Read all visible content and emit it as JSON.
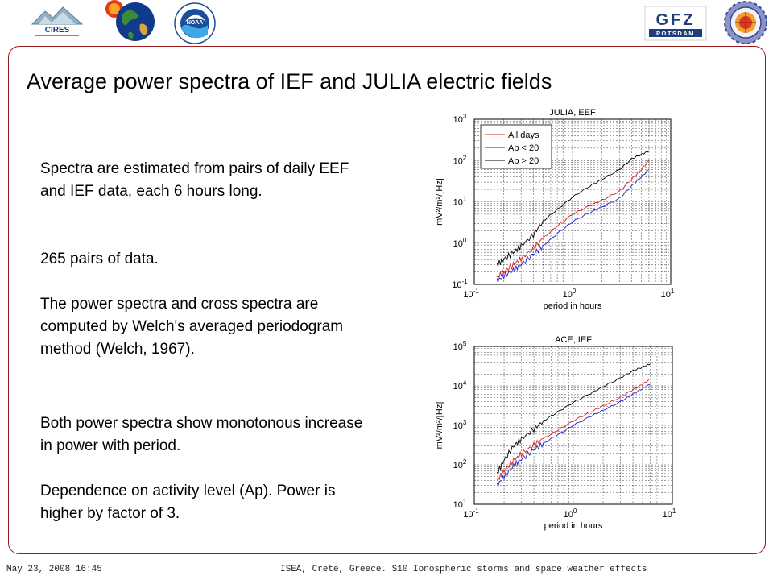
{
  "logos": {
    "cires_text": "CIRES",
    "noaa_text": "NOAA",
    "gfz_text": "GFZ",
    "potsdam_text": "POTSDAM"
  },
  "slide": {
    "title": "Average power spectra of IEF and JULIA electric fields",
    "paragraphs": [
      "Spectra are estimated from pairs of daily EEF and IEF data, each 6 hours long.",
      "265 pairs of data.",
      "The power spectra and cross spectra are computed by Welch's averaged periodogram method (Welch, 1967).",
      "Both power spectra show monotonous increase in power with period.",
      "Dependence on activity level (Ap). Power is higher by factor of 3."
    ]
  },
  "footer": {
    "left": "May 23, 2008 16:45",
    "right": "ISEA, Crete, Greece.  S10 Ionospheric storms and space weather effects"
  },
  "colors": {
    "frame": "#9b1c1c",
    "all_days": "#d62020",
    "ap_low": "#2020c0",
    "ap_high": "#000000"
  },
  "chart_data": [
    {
      "type": "line",
      "title": "JULIA, EEF",
      "xlabel": "period in hours",
      "ylabel": "mV²/m²/[Hz]",
      "xscale": "log",
      "yscale": "log",
      "xlim": [
        0.1,
        10
      ],
      "ylim": [
        0.1,
        1000
      ],
      "xticks": [
        {
          "exp": "-1"
        },
        {
          "exp": "0"
        },
        {
          "exp": "1"
        }
      ],
      "yticks": [
        {
          "exp": "-1"
        },
        {
          "exp": "0"
        },
        {
          "exp": "1"
        },
        {
          "exp": "2"
        },
        {
          "exp": "3"
        }
      ],
      "grid": true,
      "legend_position": "top-left",
      "series": [
        {
          "name": "All days",
          "color": "#d62020",
          "x": [
            0.17,
            0.2,
            0.25,
            0.3,
            0.4,
            0.5,
            0.7,
            1,
            1.5,
            2,
            3,
            4,
            5,
            6
          ],
          "y": [
            0.15,
            0.2,
            0.3,
            0.42,
            0.75,
            1.3,
            2.6,
            5,
            8,
            11,
            18,
            35,
            60,
            100
          ]
        },
        {
          "name": "Ap < 20",
          "color": "#2020c0",
          "x": [
            0.17,
            0.2,
            0.25,
            0.3,
            0.4,
            0.5,
            0.7,
            1,
            1.5,
            2,
            3,
            4,
            5,
            6
          ],
          "y": [
            0.12,
            0.16,
            0.22,
            0.3,
            0.55,
            0.85,
            1.7,
            3.3,
            5.5,
            7.5,
            12,
            24,
            40,
            60
          ]
        },
        {
          "name": "Ap > 20",
          "color": "#000000",
          "x": [
            0.17,
            0.2,
            0.25,
            0.3,
            0.4,
            0.5,
            0.7,
            1,
            1.5,
            2,
            3,
            4,
            5,
            6
          ],
          "y": [
            0.3,
            0.4,
            0.6,
            0.85,
            1.6,
            3.4,
            6.5,
            13,
            24,
            35,
            60,
            110,
            140,
            170
          ]
        }
      ]
    },
    {
      "type": "line",
      "title": "ACE, IEF",
      "xlabel": "period in hours",
      "ylabel": "mV²/m²/[Hz]",
      "xscale": "log",
      "yscale": "log",
      "xlim": [
        0.1,
        10
      ],
      "ylim": [
        10,
        100000
      ],
      "xticks": [
        {
          "exp": "-1"
        },
        {
          "exp": "0"
        },
        {
          "exp": "1"
        }
      ],
      "yticks": [
        {
          "exp": "1"
        },
        {
          "exp": "2"
        },
        {
          "exp": "3"
        },
        {
          "exp": "4"
        },
        {
          "exp": "5"
        }
      ],
      "grid": true,
      "series": [
        {
          "name": "All days",
          "color": "#d62020",
          "x": [
            0.17,
            0.2,
            0.25,
            0.3,
            0.4,
            0.5,
            0.7,
            1,
            1.5,
            2,
            3,
            4,
            5,
            6
          ],
          "y": [
            40,
            70,
            130,
            190,
            320,
            460,
            760,
            1300,
            2200,
            3100,
            5200,
            8000,
            11000,
            15000
          ]
        },
        {
          "name": "Ap < 20",
          "color": "#2020c0",
          "x": [
            0.17,
            0.2,
            0.25,
            0.3,
            0.4,
            0.5,
            0.7,
            1,
            1.5,
            2,
            3,
            4,
            5,
            6
          ],
          "y": [
            30,
            50,
            95,
            140,
            240,
            350,
            580,
            1000,
            1700,
            2400,
            4000,
            6200,
            8500,
            11000
          ]
        },
        {
          "name": "Ap > 20",
          "color": "#000000",
          "x": [
            0.17,
            0.2,
            0.25,
            0.3,
            0.4,
            0.5,
            0.7,
            1,
            1.5,
            2,
            3,
            4,
            5,
            6
          ],
          "y": [
            60,
            130,
            300,
            450,
            800,
            1300,
            2200,
            3800,
            6500,
            9500,
            16000,
            24000,
            30000,
            36000
          ]
        }
      ]
    }
  ]
}
